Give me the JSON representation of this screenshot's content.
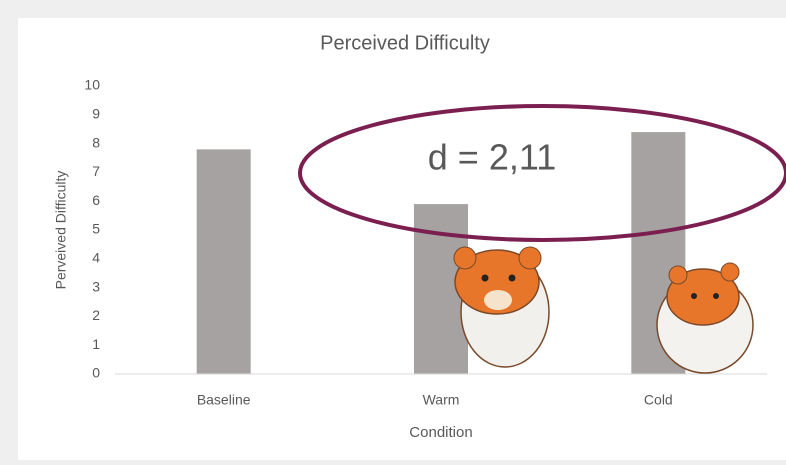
{
  "chart_data": {
    "type": "bar",
    "title": "Perceived Difficulty",
    "x_label": "Condition",
    "y_label": "Perveived Difficulty",
    "categories": [
      "Baseline",
      "Warm",
      "Cold"
    ],
    "values": [
      7.8,
      5.9,
      8.4
    ],
    "color": "#a5a2a1",
    "ylim": [
      0,
      10
    ],
    "yticks": [
      0,
      1,
      2,
      3,
      4,
      5,
      6,
      7,
      8,
      9,
      10
    ],
    "grid": false,
    "annotation": "d = 2,11",
    "annotation_color": "#7b1f50"
  }
}
